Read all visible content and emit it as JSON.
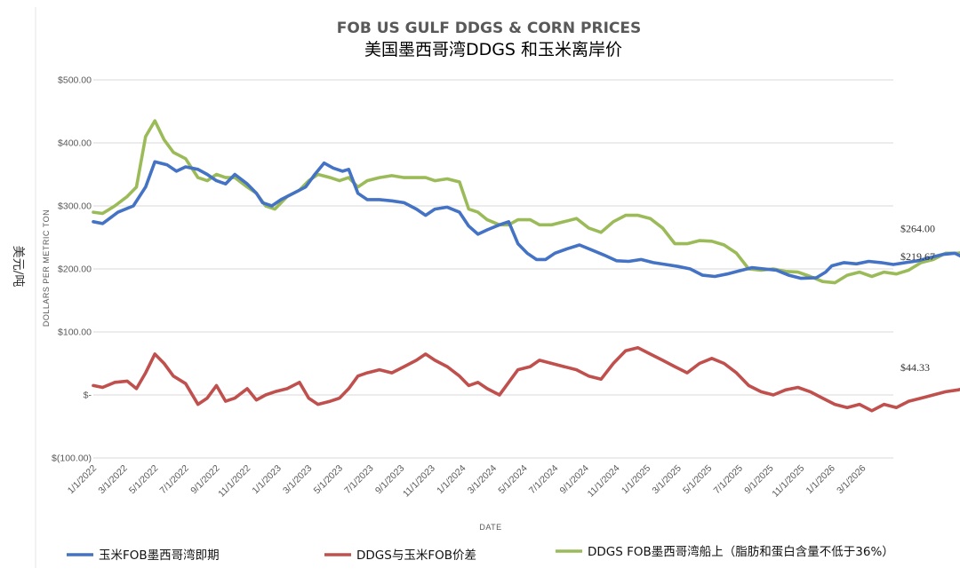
{
  "chart_data": {
    "type": "line",
    "title": "FOB US GULF DDGS & CORN PRICES",
    "subtitle": "美国墨西哥湾DDGS 和玉米离岸价",
    "xlabel": "DATE",
    "ylabel": "DOLLARS PER METRIC TON",
    "side_label": "美元/吨",
    "ylim": [
      -100,
      500
    ],
    "yticks": [
      {
        "value": 500,
        "label": "$500.00"
      },
      {
        "value": 400,
        "label": "$400.00"
      },
      {
        "value": 300,
        "label": "$300.00"
      },
      {
        "value": 200,
        "label": "$200.00"
      },
      {
        "value": 100,
        "label": "$100.00"
      },
      {
        "value": 0,
        "label": "$-"
      },
      {
        "value": -100,
        "label": "$(100.00)"
      }
    ],
    "xticks": [
      "1/1/2022",
      "3/1/2022",
      "5/1/2022",
      "7/1/2022",
      "9/1/2022",
      "11/1/2022",
      "1/1/2023",
      "3/1/2023",
      "5/1/2023",
      "7/1/2023",
      "9/1/2023",
      "11/1/2023",
      "1/1/2024",
      "3/1/2024",
      "5/1/2024",
      "7/1/2024",
      "9/1/2024",
      "11/1/2024",
      "1/1/2025",
      "3/1/2025",
      "5/1/2025",
      "7/1/2025",
      "9/1/2025",
      "11/1/2025",
      "1/1/2026",
      "3/1/2026"
    ],
    "grid": "horizontal",
    "legend_position": "bottom",
    "series": [
      {
        "name": "玉米FOB墨西哥湾即期",
        "color": "#4472C4",
        "end_label": "$219.67",
        "points": [
          [
            0,
            275
          ],
          [
            0.3,
            272
          ],
          [
            0.8,
            290
          ],
          [
            1.3,
            300
          ],
          [
            1.7,
            330
          ],
          [
            2.0,
            370
          ],
          [
            2.4,
            365
          ],
          [
            2.7,
            355
          ],
          [
            3.0,
            362
          ],
          [
            3.4,
            358
          ],
          [
            3.7,
            350
          ],
          [
            4.0,
            340
          ],
          [
            4.3,
            335
          ],
          [
            4.6,
            350
          ],
          [
            5.0,
            335
          ],
          [
            5.3,
            320
          ],
          [
            5.5,
            305
          ],
          [
            5.8,
            300
          ],
          [
            6.1,
            310
          ],
          [
            6.5,
            320
          ],
          [
            6.9,
            330
          ],
          [
            7.2,
            350
          ],
          [
            7.5,
            368
          ],
          [
            7.8,
            360
          ],
          [
            8.1,
            355
          ],
          [
            8.3,
            358
          ],
          [
            8.6,
            320
          ],
          [
            8.9,
            310
          ],
          [
            9.3,
            310
          ],
          [
            9.7,
            308
          ],
          [
            10.1,
            305
          ],
          [
            10.5,
            295
          ],
          [
            10.8,
            285
          ],
          [
            11.1,
            295
          ],
          [
            11.5,
            298
          ],
          [
            11.9,
            290
          ],
          [
            12.2,
            268
          ],
          [
            12.5,
            255
          ],
          [
            12.8,
            262
          ],
          [
            13.2,
            270
          ],
          [
            13.5,
            275
          ],
          [
            13.8,
            240
          ],
          [
            14.1,
            225
          ],
          [
            14.4,
            215
          ],
          [
            14.7,
            215
          ],
          [
            15.0,
            225
          ],
          [
            15.4,
            232
          ],
          [
            15.8,
            238
          ],
          [
            16.2,
            230
          ],
          [
            16.6,
            222
          ],
          [
            17.0,
            213
          ],
          [
            17.4,
            212
          ],
          [
            17.8,
            215
          ],
          [
            18.2,
            210
          ],
          [
            18.6,
            207
          ],
          [
            19.0,
            204
          ],
          [
            19.4,
            200
          ],
          [
            19.8,
            190
          ],
          [
            20.2,
            188
          ],
          [
            20.6,
            192
          ],
          [
            21.0,
            197
          ],
          [
            21.4,
            202
          ],
          [
            21.8,
            200
          ],
          [
            22.2,
            198
          ],
          [
            22.6,
            190
          ],
          [
            23.0,
            185
          ],
          [
            23.5,
            186
          ],
          [
            23.8,
            195
          ],
          [
            24.0,
            205
          ],
          [
            24.4,
            210
          ],
          [
            24.8,
            208
          ],
          [
            25.2,
            212
          ],
          [
            25.6,
            210
          ],
          [
            26.0,
            207
          ],
          [
            26.4,
            210
          ],
          [
            26.8,
            213
          ],
          [
            27.2,
            218
          ],
          [
            27.6,
            223
          ],
          [
            28.0,
            225
          ],
          [
            28.4,
            215
          ],
          [
            28.8,
            210
          ],
          [
            29.2,
            222
          ],
          [
            29.6,
            218
          ],
          [
            30.0,
            212
          ],
          [
            30.4,
            205
          ],
          [
            30.8,
            200
          ],
          [
            31.2,
            197
          ],
          [
            31.6,
            200
          ],
          [
            32.0,
            203
          ],
          [
            32.4,
            202
          ],
          [
            32.8,
            204
          ],
          [
            33.2,
            205
          ],
          [
            33.6,
            203
          ],
          [
            34.0,
            208
          ],
          [
            34.4,
            212
          ],
          [
            34.8,
            213
          ],
          [
            35.2,
            212
          ],
          [
            35.6,
            211
          ],
          [
            36.0,
            213
          ],
          [
            36.3,
            222
          ],
          [
            36.6,
            215
          ],
          [
            37.0,
            220
          ]
        ]
      },
      {
        "name": "DDGS与玉米FOB价差",
        "color": "#C0504D",
        "end_label": "$44.33",
        "points": [
          [
            0,
            15
          ],
          [
            0.3,
            12
          ],
          [
            0.7,
            20
          ],
          [
            1.1,
            22
          ],
          [
            1.4,
            10
          ],
          [
            1.7,
            35
          ],
          [
            2.0,
            65
          ],
          [
            2.3,
            50
          ],
          [
            2.6,
            30
          ],
          [
            3.0,
            18
          ],
          [
            3.4,
            -15
          ],
          [
            3.7,
            -5
          ],
          [
            4.0,
            15
          ],
          [
            4.3,
            -10
          ],
          [
            4.6,
            -5
          ],
          [
            5.0,
            10
          ],
          [
            5.3,
            -8
          ],
          [
            5.6,
            0
          ],
          [
            5.9,
            5
          ],
          [
            6.3,
            10
          ],
          [
            6.7,
            20
          ],
          [
            7.0,
            -5
          ],
          [
            7.3,
            -15
          ],
          [
            7.7,
            -10
          ],
          [
            8.0,
            -5
          ],
          [
            8.3,
            10
          ],
          [
            8.6,
            30
          ],
          [
            8.9,
            35
          ],
          [
            9.3,
            40
          ],
          [
            9.7,
            35
          ],
          [
            10.1,
            45
          ],
          [
            10.5,
            55
          ],
          [
            10.8,
            65
          ],
          [
            11.1,
            55
          ],
          [
            11.5,
            45
          ],
          [
            11.9,
            30
          ],
          [
            12.2,
            15
          ],
          [
            12.5,
            20
          ],
          [
            12.8,
            10
          ],
          [
            13.2,
            0
          ],
          [
            13.5,
            20
          ],
          [
            13.8,
            40
          ],
          [
            14.2,
            45
          ],
          [
            14.5,
            55
          ],
          [
            14.9,
            50
          ],
          [
            15.3,
            45
          ],
          [
            15.7,
            40
          ],
          [
            16.1,
            30
          ],
          [
            16.5,
            25
          ],
          [
            16.9,
            50
          ],
          [
            17.3,
            70
          ],
          [
            17.7,
            75
          ],
          [
            18.1,
            65
          ],
          [
            18.5,
            55
          ],
          [
            18.9,
            45
          ],
          [
            19.3,
            35
          ],
          [
            19.7,
            50
          ],
          [
            20.1,
            58
          ],
          [
            20.5,
            50
          ],
          [
            20.9,
            35
          ],
          [
            21.3,
            15
          ],
          [
            21.7,
            5
          ],
          [
            22.1,
            0
          ],
          [
            22.5,
            8
          ],
          [
            22.9,
            12
          ],
          [
            23.3,
            5
          ],
          [
            23.7,
            -5
          ],
          [
            24.1,
            -15
          ],
          [
            24.5,
            -20
          ],
          [
            24.9,
            -15
          ],
          [
            25.3,
            -25
          ],
          [
            25.7,
            -15
          ],
          [
            26.1,
            -20
          ],
          [
            26.5,
            -10
          ],
          [
            26.9,
            -5
          ],
          [
            27.3,
            0
          ],
          [
            27.7,
            5
          ],
          [
            28.1,
            8
          ],
          [
            28.5,
            12
          ],
          [
            28.9,
            15
          ],
          [
            29.3,
            18
          ],
          [
            29.7,
            25
          ],
          [
            30.1,
            35
          ],
          [
            30.5,
            30
          ],
          [
            30.9,
            25
          ],
          [
            31.3,
            28
          ],
          [
            31.7,
            22
          ],
          [
            32.1,
            25
          ],
          [
            32.5,
            20
          ],
          [
            32.9,
            22
          ],
          [
            33.3,
            25
          ],
          [
            33.7,
            20
          ],
          [
            34.1,
            25
          ],
          [
            34.5,
            22
          ],
          [
            34.9,
            28
          ],
          [
            35.3,
            30
          ],
          [
            35.7,
            35
          ],
          [
            36.1,
            40
          ],
          [
            36.5,
            48
          ],
          [
            37.0,
            44
          ]
        ]
      },
      {
        "name": "DDGS FOB墨西哥湾船上（脂肪和蛋白含量不低于36%）",
        "color": "#9BBB59",
        "end_label": "$264.00",
        "points": [
          [
            0,
            290
          ],
          [
            0.3,
            288
          ],
          [
            0.7,
            300
          ],
          [
            1.1,
            315
          ],
          [
            1.4,
            330
          ],
          [
            1.7,
            410
          ],
          [
            2.0,
            435
          ],
          [
            2.3,
            405
          ],
          [
            2.6,
            385
          ],
          [
            3.0,
            375
          ],
          [
            3.4,
            345
          ],
          [
            3.7,
            340
          ],
          [
            4.0,
            350
          ],
          [
            4.3,
            345
          ],
          [
            4.6,
            345
          ],
          [
            5.0,
            330
          ],
          [
            5.3,
            320
          ],
          [
            5.6,
            300
          ],
          [
            5.9,
            295
          ],
          [
            6.3,
            315
          ],
          [
            6.7,
            325
          ],
          [
            7.0,
            340
          ],
          [
            7.3,
            350
          ],
          [
            7.7,
            345
          ],
          [
            8.0,
            340
          ],
          [
            8.3,
            345
          ],
          [
            8.6,
            330
          ],
          [
            8.9,
            340
          ],
          [
            9.3,
            345
          ],
          [
            9.7,
            348
          ],
          [
            10.1,
            345
          ],
          [
            10.5,
            345
          ],
          [
            10.8,
            345
          ],
          [
            11.1,
            340
          ],
          [
            11.5,
            343
          ],
          [
            11.9,
            338
          ],
          [
            12.2,
            295
          ],
          [
            12.5,
            290
          ],
          [
            12.8,
            278
          ],
          [
            13.2,
            270
          ],
          [
            13.5,
            270
          ],
          [
            13.8,
            278
          ],
          [
            14.2,
            278
          ],
          [
            14.5,
            270
          ],
          [
            14.9,
            270
          ],
          [
            15.3,
            275
          ],
          [
            15.7,
            280
          ],
          [
            16.1,
            265
          ],
          [
            16.5,
            258
          ],
          [
            16.9,
            275
          ],
          [
            17.3,
            285
          ],
          [
            17.7,
            285
          ],
          [
            18.1,
            280
          ],
          [
            18.5,
            265
          ],
          [
            18.9,
            240
          ],
          [
            19.3,
            240
          ],
          [
            19.7,
            245
          ],
          [
            20.1,
            244
          ],
          [
            20.5,
            238
          ],
          [
            20.9,
            225
          ],
          [
            21.3,
            200
          ],
          [
            21.7,
            198
          ],
          [
            22.1,
            200
          ],
          [
            22.5,
            196
          ],
          [
            22.9,
            195
          ],
          [
            23.3,
            188
          ],
          [
            23.7,
            180
          ],
          [
            24.1,
            178
          ],
          [
            24.5,
            190
          ],
          [
            24.9,
            195
          ],
          [
            25.3,
            188
          ],
          [
            25.7,
            195
          ],
          [
            26.1,
            192
          ],
          [
            26.5,
            198
          ],
          [
            26.9,
            210
          ],
          [
            27.3,
            215
          ],
          [
            27.7,
            225
          ],
          [
            28.1,
            225
          ],
          [
            28.5,
            228
          ],
          [
            28.9,
            225
          ],
          [
            29.3,
            228
          ],
          [
            29.7,
            232
          ],
          [
            30.1,
            238
          ],
          [
            30.5,
            230
          ],
          [
            30.9,
            228
          ],
          [
            31.3,
            225
          ],
          [
            31.7,
            227
          ],
          [
            32.1,
            228
          ],
          [
            32.5,
            225
          ],
          [
            32.9,
            228
          ],
          [
            33.3,
            230
          ],
          [
            33.7,
            230
          ],
          [
            34.1,
            235
          ],
          [
            34.5,
            240
          ],
          [
            34.9,
            245
          ],
          [
            35.3,
            250
          ],
          [
            35.7,
            255
          ],
          [
            36.1,
            260
          ],
          [
            36.5,
            262
          ],
          [
            37.0,
            264
          ]
        ]
      }
    ]
  }
}
